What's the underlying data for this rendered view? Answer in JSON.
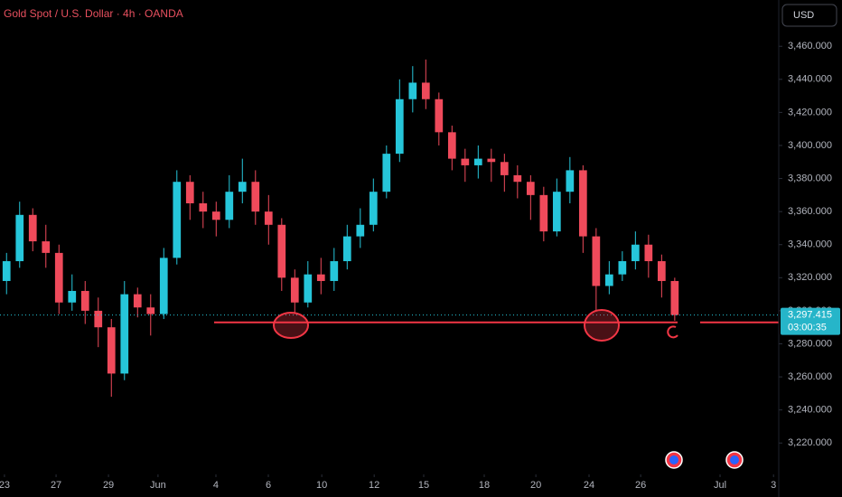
{
  "chart_data": {
    "type": "candlestick",
    "title": "Gold Spot / U.S. Dollar · 4h · OANDA",
    "currency": "USD",
    "up_color": "#26c6da",
    "down_color": "#ef4a5b",
    "x": [
      0.25,
      0.75,
      1.25,
      1.75,
      2.25,
      2.75,
      3.25,
      3.75,
      4.25,
      4.75,
      5.25,
      5.75,
      6.25,
      6.75,
      7.25,
      7.75,
      8.25,
      8.75,
      9.25,
      9.75,
      10.25,
      10.75,
      11.25,
      11.75,
      12.25,
      12.75,
      13.25,
      13.75,
      14.25,
      14.75,
      15.25,
      15.75,
      16.25,
      16.75,
      17.25,
      17.75,
      18.25,
      18.75,
      19.25,
      19.75,
      20.25,
      20.75,
      21.25,
      21.75,
      22.25,
      22.75,
      23.25,
      23.75,
      24.25,
      24.75,
      25.25,
      25.75
    ],
    "open": [
      3318,
      3330,
      3358,
      3342,
      3335,
      3305,
      3312,
      3300,
      3290,
      3262,
      3310,
      3302,
      3298,
      3332,
      3378,
      3365,
      3360,
      3355,
      3372,
      3378,
      3360,
      3352,
      3320,
      3305,
      3322,
      3318,
      3330,
      3345,
      3352,
      3372,
      3395,
      3428,
      3438,
      3428,
      3408,
      3392,
      3388,
      3392,
      3390,
      3382,
      3378,
      3370,
      3348,
      3372,
      3385,
      3345,
      3315,
      3322,
      3330,
      3340,
      3330,
      3318
    ],
    "high": [
      3335,
      3366,
      3362,
      3352,
      3340,
      3322,
      3318,
      3308,
      3295,
      3318,
      3314,
      3310,
      3338,
      3385,
      3382,
      3372,
      3366,
      3382,
      3392,
      3385,
      3370,
      3356,
      3325,
      3330,
      3332,
      3338,
      3352,
      3362,
      3380,
      3400,
      3440,
      3448,
      3452,
      3432,
      3412,
      3398,
      3400,
      3398,
      3395,
      3388,
      3382,
      3375,
      3380,
      3393,
      3388,
      3350,
      3330,
      3336,
      3348,
      3346,
      3334,
      3320
    ],
    "low": [
      3310,
      3326,
      3336,
      3326,
      3298,
      3300,
      3292,
      3278,
      3248,
      3258,
      3296,
      3285,
      3295,
      3328,
      3355,
      3350,
      3345,
      3350,
      3365,
      3352,
      3340,
      3312,
      3298,
      3302,
      3310,
      3312,
      3325,
      3338,
      3348,
      3368,
      3390,
      3420,
      3422,
      3400,
      3385,
      3378,
      3380,
      3378,
      3372,
      3368,
      3355,
      3342,
      3345,
      3365,
      3335,
      3300,
      3310,
      3318,
      3325,
      3320,
      3308,
      3294
    ],
    "close": [
      3330,
      3358,
      3342,
      3335,
      3305,
      3312,
      3300,
      3290,
      3262,
      3310,
      3302,
      3298,
      3332,
      3378,
      3365,
      3360,
      3355,
      3372,
      3378,
      3360,
      3352,
      3320,
      3305,
      3322,
      3318,
      3330,
      3345,
      3352,
      3372,
      3395,
      3428,
      3438,
      3428,
      3408,
      3392,
      3388,
      3392,
      3390,
      3382,
      3378,
      3370,
      3348,
      3372,
      3385,
      3345,
      3315,
      3322,
      3330,
      3340,
      3330,
      3318,
      3297.415
    ],
    "xlim": [
      0,
      29.72
    ],
    "xticks": [
      {
        "value": 0.17,
        "label": "23"
      },
      {
        "value": 2.14,
        "label": "27"
      },
      {
        "value": 4.14,
        "label": "29"
      },
      {
        "value": 6.03,
        "label": "Jun"
      },
      {
        "value": 8.24,
        "label": "4"
      },
      {
        "value": 10.24,
        "label": "6"
      },
      {
        "value": 12.28,
        "label": "10"
      },
      {
        "value": 14.28,
        "label": "12"
      },
      {
        "value": 16.17,
        "label": "15"
      },
      {
        "value": 18.48,
        "label": "18"
      },
      {
        "value": 20.45,
        "label": "20"
      },
      {
        "value": 22.48,
        "label": "24"
      },
      {
        "value": 24.45,
        "label": "26"
      },
      {
        "value": 27.48,
        "label": "Jul"
      },
      {
        "value": 29.52,
        "label": "3"
      }
    ],
    "ylim": [
      3201,
      3488
    ],
    "yticks": [
      {
        "value": 3220,
        "label": "3,220.000"
      },
      {
        "value": 3240,
        "label": "3,240.000"
      },
      {
        "value": 3260,
        "label": "3,260.000"
      },
      {
        "value": 3280,
        "label": "3,280.000"
      },
      {
        "value": 3300,
        "label": "3,300.000"
      },
      {
        "value": 3320,
        "label": "3,320.000"
      },
      {
        "value": 3340,
        "label": "3,340.000"
      },
      {
        "value": 3360,
        "label": "3,360.000"
      },
      {
        "value": 3380,
        "label": "3,380.000"
      },
      {
        "value": 3400,
        "label": "3,400.000"
      },
      {
        "value": 3420,
        "label": "3,420.000"
      },
      {
        "value": 3440,
        "label": "3,440.000"
      },
      {
        "value": 3460,
        "label": "3,460.000"
      }
    ],
    "last_price": {
      "value": 3297.415,
      "label": "3,297.415"
    },
    "countdown": "03:00:35",
    "support_level": 3293,
    "grid": false
  }
}
